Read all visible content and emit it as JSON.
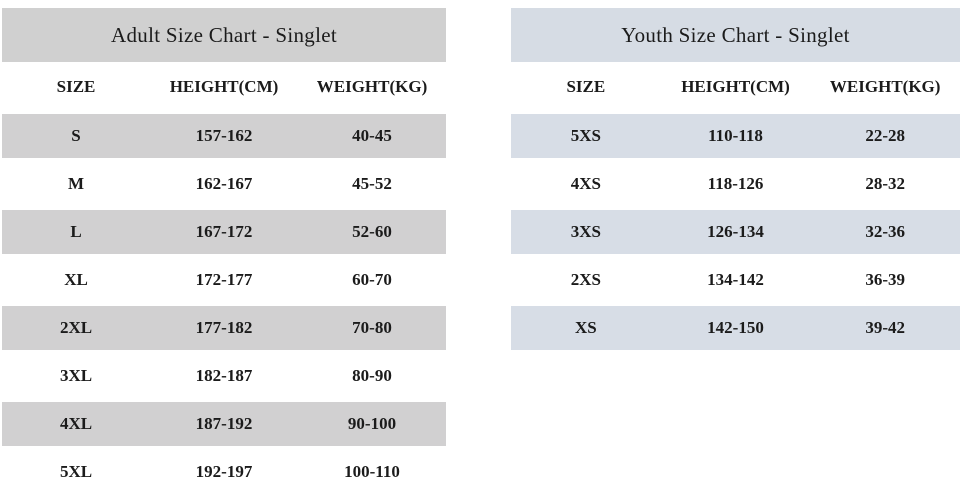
{
  "page": {
    "background": "#ffffff",
    "text_color": "#1b1b1b"
  },
  "adult_chart": {
    "title": "Adult Size Chart - Singlet",
    "colors": {
      "header_bg": "#d0d0d0",
      "row_shade": "#d1d0d1"
    },
    "columns": [
      "SIZE",
      "HEIGHT(CM)",
      "WEIGHT(KG)"
    ],
    "rows": [
      [
        "S",
        "157-162",
        "40-45"
      ],
      [
        "M",
        "162-167",
        "45-52"
      ],
      [
        "L",
        "167-172",
        "52-60"
      ],
      [
        "XL",
        "172-177",
        "60-70"
      ],
      [
        "2XL",
        "177-182",
        "70-80"
      ],
      [
        "3XL",
        "182-187",
        "80-90"
      ],
      [
        "4XL",
        "187-192",
        "90-100"
      ],
      [
        "5XL",
        "192-197",
        "100-110"
      ]
    ]
  },
  "youth_chart": {
    "title": "Youth Size Chart - Singlet",
    "colors": {
      "header_bg": "#d6dce4",
      "row_shade": "#d7dde6"
    },
    "columns": [
      "SIZE",
      "HEIGHT(CM)",
      "WEIGHT(KG)"
    ],
    "rows": [
      [
        "5XS",
        "110-118",
        "22-28"
      ],
      [
        "4XS",
        "118-126",
        "28-32"
      ],
      [
        "3XS",
        "126-134",
        "32-36"
      ],
      [
        "2XS",
        "134-142",
        "36-39"
      ],
      [
        "XS",
        "142-150",
        "39-42"
      ]
    ]
  },
  "chart_data": [
    {
      "type": "table",
      "title": "Adult Size Chart - Singlet",
      "columns": [
        "SIZE",
        "HEIGHT(CM)",
        "WEIGHT(KG)"
      ],
      "rows": [
        [
          "S",
          "157-162",
          "40-45"
        ],
        [
          "M",
          "162-167",
          "45-52"
        ],
        [
          "L",
          "167-172",
          "52-60"
        ],
        [
          "XL",
          "172-177",
          "60-70"
        ],
        [
          "2XL",
          "177-182",
          "70-80"
        ],
        [
          "3XL",
          "182-187",
          "80-90"
        ],
        [
          "4XL",
          "187-192",
          "90-100"
        ],
        [
          "5XL",
          "192-197",
          "100-110"
        ]
      ]
    },
    {
      "type": "table",
      "title": "Youth Size Chart - Singlet",
      "columns": [
        "SIZE",
        "HEIGHT(CM)",
        "WEIGHT(KG)"
      ],
      "rows": [
        [
          "5XS",
          "110-118",
          "22-28"
        ],
        [
          "4XS",
          "118-126",
          "28-32"
        ],
        [
          "3XS",
          "126-134",
          "32-36"
        ],
        [
          "2XS",
          "134-142",
          "36-39"
        ],
        [
          "XS",
          "142-150",
          "39-42"
        ]
      ]
    }
  ]
}
